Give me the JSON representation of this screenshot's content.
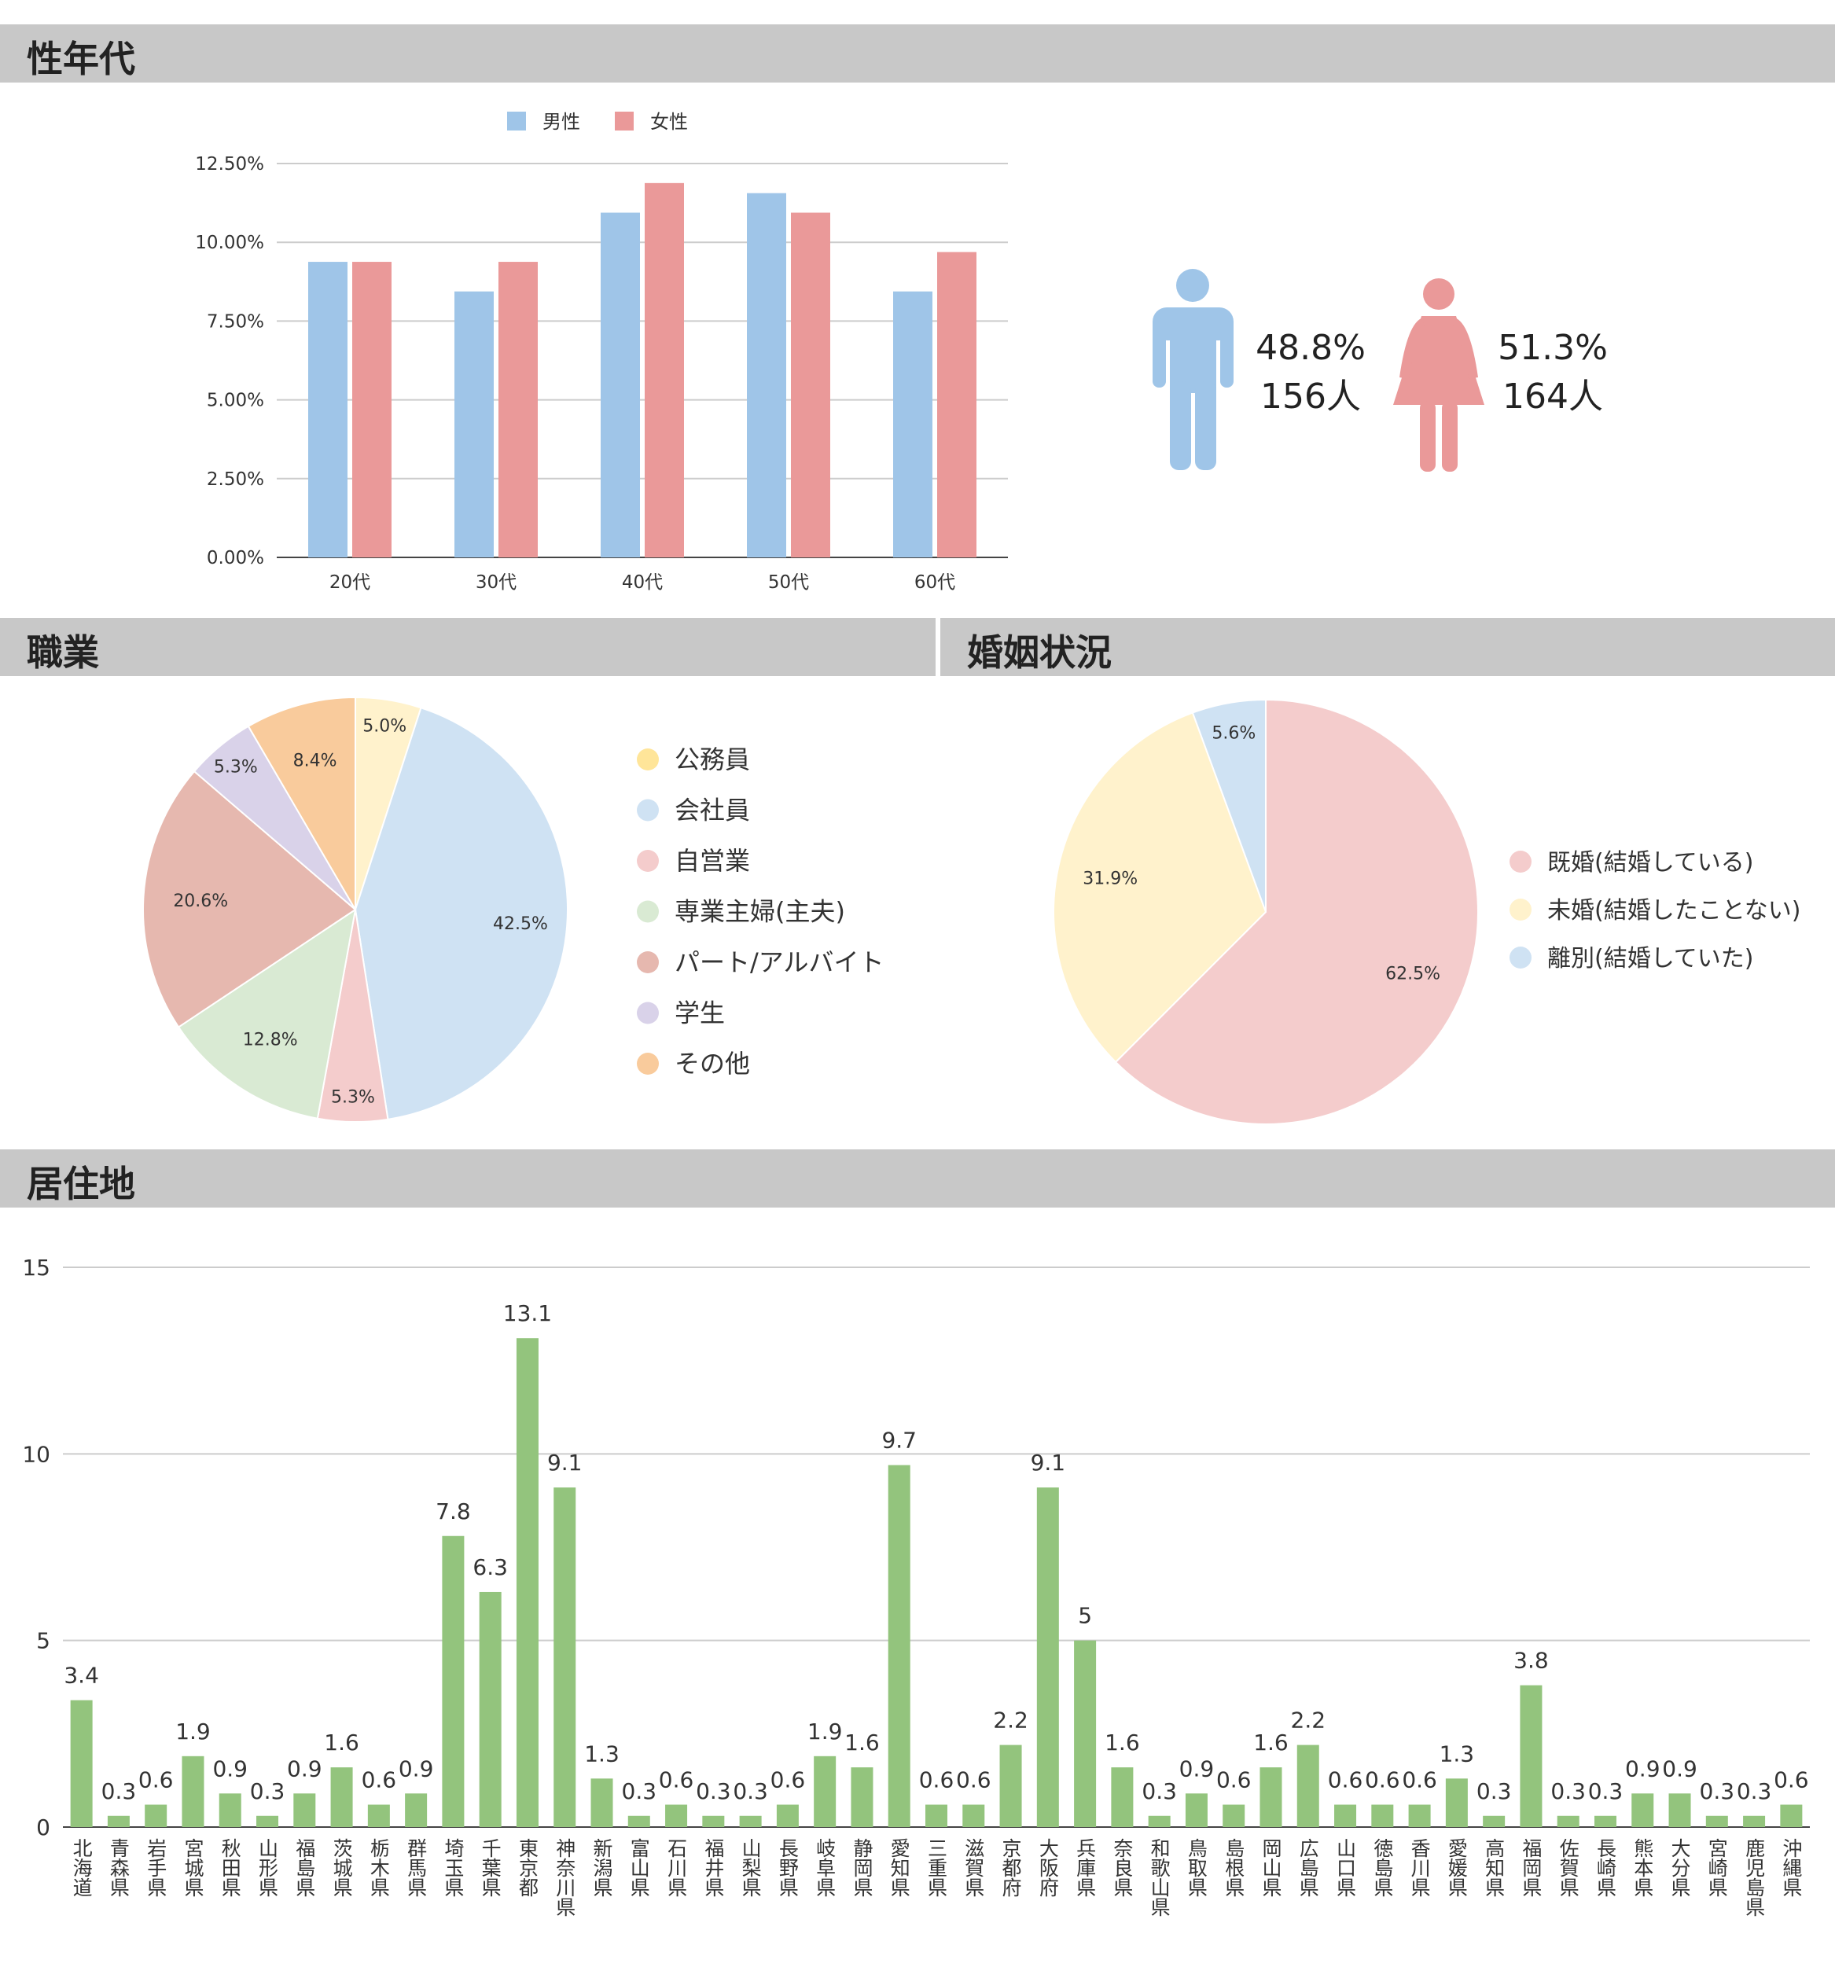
{
  "sections": {
    "gender_age": "性年代",
    "occupation": "職業",
    "marital": "婚姻状況",
    "residence": "居住地"
  },
  "colors": {
    "male": "#9fc5e8",
    "female": "#ea9999",
    "green": "#93c47d",
    "header": "#c8c8c8"
  },
  "gender_summary": {
    "male": {
      "pct": "48.8%",
      "count": "156人",
      "icon": "male-person-icon"
    },
    "female": {
      "pct": "51.3%",
      "count": "164人",
      "icon": "female-person-icon"
    }
  },
  "chart_data": [
    {
      "type": "bar",
      "title": "",
      "categories": [
        "20代",
        "30代",
        "40代",
        "50代",
        "60代"
      ],
      "series": [
        {
          "name": "男性",
          "color": "#9fc5e8",
          "values": [
            9.38,
            8.44,
            10.94,
            11.56,
            8.44
          ]
        },
        {
          "name": "女性",
          "color": "#ea9999",
          "values": [
            9.38,
            9.38,
            11.88,
            10.94,
            9.69
          ]
        }
      ],
      "yticks": [
        "0.00%",
        "2.50%",
        "5.00%",
        "7.50%",
        "10.00%",
        "12.50%"
      ],
      "ylim": [
        0,
        12.5
      ],
      "grid": true,
      "legend": "top"
    },
    {
      "type": "pie",
      "labels": [
        "公務員",
        "会社員",
        "自営業",
        "専業主婦(主夫)",
        "パート/アルバイト",
        "学生",
        "その他"
      ],
      "values": [
        5.0,
        42.5,
        5.3,
        12.8,
        20.6,
        5.3,
        8.4
      ],
      "value_labels": [
        "5.0%",
        "42.5%",
        "5.3%",
        "12.8%",
        "20.6%",
        "5.3%",
        "8.4%"
      ],
      "colors": [
        "#fff2cc",
        "#cfe2f3",
        "#f4cccc",
        "#d9ead3",
        "#e6b8af",
        "#d9d2e9",
        "#f9cb9c"
      ],
      "legend_colors": [
        "#ffe599",
        "#cfe2f3",
        "#f4cccc",
        "#d9ead3",
        "#e6b8af",
        "#d9d2e9",
        "#f9cb9c"
      ],
      "legend": "right"
    },
    {
      "type": "pie",
      "labels": [
        "既婚(結婚している)",
        "未婚(結婚したことない)",
        "離別(結婚していた)"
      ],
      "values": [
        62.5,
        31.9,
        5.6
      ],
      "value_labels": [
        "62.5%",
        "31.9%",
        "5.6%"
      ],
      "colors": [
        "#f4cccc",
        "#fff2cc",
        "#cfe2f3"
      ],
      "legend": "right"
    },
    {
      "type": "bar",
      "categories": [
        "北海道",
        "青森県",
        "岩手県",
        "宮城県",
        "秋田県",
        "山形県",
        "福島県",
        "茨城県",
        "栃木県",
        "群馬県",
        "埼玉県",
        "千葉県",
        "東京都",
        "神奈川県",
        "新潟県",
        "富山県",
        "石川県",
        "福井県",
        "山梨県",
        "長野県",
        "岐阜県",
        "静岡県",
        "愛知県",
        "三重県",
        "滋賀県",
        "京都府",
        "大阪府",
        "兵庫県",
        "奈良県",
        "和歌山県",
        "鳥取県",
        "島根県",
        "岡山県",
        "広島県",
        "山口県",
        "徳島県",
        "香川県",
        "愛媛県",
        "高知県",
        "福岡県",
        "佐賀県",
        "長崎県",
        "熊本県",
        "大分県",
        "宮崎県",
        "鹿児島県",
        "沖縄県"
      ],
      "values": [
        3.4,
        0.3,
        0.6,
        1.9,
        0.9,
        0.3,
        0.9,
        1.6,
        0.6,
        0.9,
        7.8,
        6.3,
        13.1,
        9.1,
        1.3,
        0.3,
        0.6,
        0.3,
        0.3,
        0.6,
        1.9,
        1.6,
        9.7,
        0.6,
        0.6,
        2.2,
        9.1,
        5,
        1.6,
        0.3,
        0.9,
        0.6,
        1.6,
        2.2,
        0.6,
        0.6,
        0.6,
        1.3,
        0.3,
        3.8,
        0.3,
        0.3,
        0.9,
        0.9,
        0.3,
        0.3,
        0.6
      ],
      "yticks": [
        "0",
        "5",
        "10",
        "15"
      ],
      "ylim": [
        0,
        15
      ],
      "grid": true
    }
  ]
}
